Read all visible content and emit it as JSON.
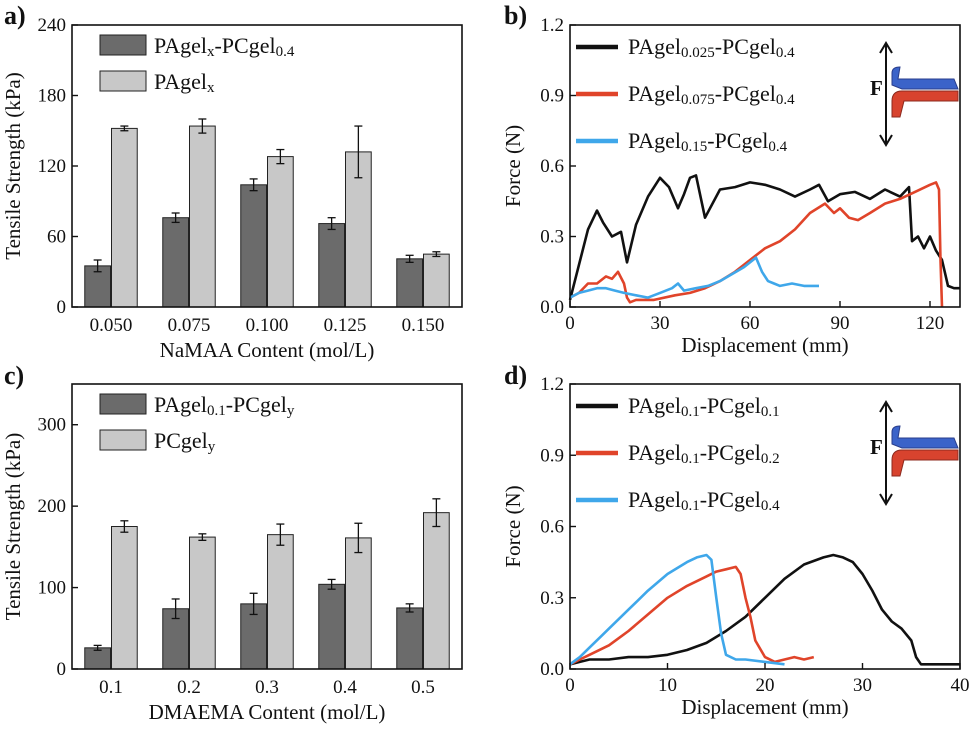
{
  "colors": {
    "dark_bar": "#6b6b6b",
    "light_bar": "#c8c8c8",
    "black_line": "#111111",
    "red_line": "#e0442a",
    "blue_line": "#3fa7ea",
    "inset_blue": "#3b63c9",
    "inset_red": "#d8432e"
  },
  "chart_data": [
    {
      "id": "a",
      "panel_label": "a)",
      "type": "bar",
      "xlabel": "NaMAA Content (mol/L)",
      "ylabel": "Tensile Strength (kPa)",
      "ylim": [
        0,
        240
      ],
      "yticks": [
        "0",
        "60",
        "120",
        "180",
        "240"
      ],
      "categories": [
        "0.050",
        "0.075",
        "0.100",
        "0.125",
        "0.150"
      ],
      "series": [
        {
          "name": "PAgelx-PCgel0.4",
          "legend_main": "PAgel",
          "legend_sub1": "x",
          "legend_mid": "-PCgel",
          "legend_sub2": "0.4",
          "color": "dark",
          "values": [
            35,
            76,
            104,
            71,
            41
          ],
          "errors": [
            5,
            4,
            5,
            5,
            3
          ]
        },
        {
          "name": "PAgelx",
          "legend_main": "PAgel",
          "legend_sub1": "x",
          "legend_mid": "",
          "legend_sub2": "",
          "color": "light",
          "values": [
            152,
            154,
            128,
            132,
            45
          ],
          "errors": [
            2,
            6,
            6,
            22,
            2
          ]
        }
      ]
    },
    {
      "id": "b",
      "panel_label": "b)",
      "type": "line",
      "xlabel": "Displacement (mm)",
      "ylabel": "Force (N)",
      "xlim": [
        0,
        130
      ],
      "ylim": [
        0,
        1.2
      ],
      "xticks": [
        "0",
        "30",
        "60",
        "90",
        "120"
      ],
      "yticks": [
        "0.0",
        "0.3",
        "0.6",
        "0.9",
        "1.2"
      ],
      "inset_label": "F",
      "series": [
        {
          "name": "PAgel0.025-PCgel0.4",
          "legend_main": "PAgel",
          "legend_sub1": "0.025",
          "legend_mid": "-PCgel",
          "legend_sub2": "0.4",
          "color": "black",
          "x": [
            0,
            3,
            6,
            9,
            11,
            14,
            17,
            19,
            22,
            26,
            30,
            33,
            36,
            38,
            40,
            42,
            45,
            50,
            55,
            60,
            65,
            70,
            75,
            80,
            83,
            86,
            90,
            95,
            100,
            105,
            110,
            113,
            114,
            116,
            118,
            120,
            122,
            124,
            126,
            128,
            130
          ],
          "y": [
            0.03,
            0.18,
            0.33,
            0.41,
            0.36,
            0.3,
            0.32,
            0.19,
            0.35,
            0.47,
            0.55,
            0.51,
            0.42,
            0.48,
            0.55,
            0.56,
            0.38,
            0.5,
            0.51,
            0.53,
            0.52,
            0.5,
            0.47,
            0.5,
            0.52,
            0.45,
            0.48,
            0.49,
            0.46,
            0.5,
            0.47,
            0.51,
            0.28,
            0.3,
            0.25,
            0.3,
            0.24,
            0.2,
            0.09,
            0.08,
            0.08
          ]
        },
        {
          "name": "PAgel0.075-PCgel0.4",
          "legend_main": "PAgel",
          "legend_sub1": "0.075",
          "legend_mid": "-PCgel",
          "legend_sub2": "0.4",
          "color": "red",
          "x": [
            0,
            3,
            6,
            9,
            12,
            14,
            16,
            18,
            19,
            20,
            22,
            28,
            35,
            40,
            45,
            50,
            55,
            60,
            65,
            70,
            75,
            80,
            85,
            88,
            90,
            93,
            96,
            100,
            105,
            110,
            115,
            120,
            122,
            123,
            123.5,
            124
          ],
          "y": [
            0.04,
            0.06,
            0.1,
            0.1,
            0.13,
            0.12,
            0.15,
            0.1,
            0.04,
            0.02,
            0.03,
            0.03,
            0.05,
            0.06,
            0.08,
            0.11,
            0.15,
            0.2,
            0.25,
            0.28,
            0.33,
            0.4,
            0.44,
            0.4,
            0.42,
            0.38,
            0.37,
            0.4,
            0.44,
            0.46,
            0.49,
            0.52,
            0.53,
            0.5,
            0.2,
            0.0
          ]
        },
        {
          "name": "PAgel0.15-PCgel0.4",
          "legend_main": "PAgel",
          "legend_sub1": "0.15",
          "legend_mid": "-PCgel",
          "legend_sub2": "0.4",
          "color": "blue",
          "x": [
            0,
            3,
            6,
            9,
            12,
            15,
            18,
            22,
            26,
            30,
            34,
            36,
            38,
            42,
            46,
            50,
            54,
            58,
            61,
            62,
            63,
            64,
            66,
            68,
            70,
            74,
            78,
            83
          ],
          "y": [
            0.04,
            0.06,
            0.07,
            0.08,
            0.08,
            0.07,
            0.06,
            0.05,
            0.04,
            0.06,
            0.08,
            0.1,
            0.07,
            0.08,
            0.09,
            0.11,
            0.14,
            0.17,
            0.2,
            0.21,
            0.18,
            0.15,
            0.11,
            0.1,
            0.09,
            0.1,
            0.09,
            0.09
          ]
        }
      ]
    },
    {
      "id": "c",
      "panel_label": "c)",
      "type": "bar",
      "xlabel": "DMAEMA Content (mol/L)",
      "ylabel": "Tensile Strength (kPa)",
      "ylim": [
        0,
        350
      ],
      "yticks": [
        "0",
        "100",
        "200",
        "300"
      ],
      "ytick_values": [
        0,
        100,
        200,
        300
      ],
      "categories": [
        "0.1",
        "0.2",
        "0.3",
        "0.4",
        "0.5"
      ],
      "series": [
        {
          "name": "PAgel0.1-PCgely",
          "legend_main": "PAgel",
          "legend_sub1": "0.1",
          "legend_mid": "-PCgel",
          "legend_sub2": "y",
          "color": "dark",
          "values": [
            26,
            74,
            80,
            104,
            75
          ],
          "errors": [
            3,
            12,
            13,
            6,
            5
          ]
        },
        {
          "name": "PCgely",
          "legend_main": "PCgel",
          "legend_sub1": "y",
          "legend_mid": "",
          "legend_sub2": "",
          "color": "light",
          "values": [
            175,
            162,
            165,
            161,
            192
          ],
          "errors": [
            7,
            4,
            13,
            18,
            17
          ]
        }
      ]
    },
    {
      "id": "d",
      "panel_label": "d)",
      "type": "line",
      "xlabel": "Displacement (mm)",
      "ylabel": "Force (N)",
      "xlim": [
        0,
        40
      ],
      "ylim": [
        0,
        1.2
      ],
      "xticks": [
        "0",
        "10",
        "20",
        "30",
        "40"
      ],
      "yticks": [
        "0.0",
        "0.3",
        "0.6",
        "0.9",
        "1.2"
      ],
      "inset_label": "F",
      "series": [
        {
          "name": "PAgel0.1-PCgel0.1",
          "legend_main": "PAgel",
          "legend_sub1": "0.1",
          "legend_mid": "-PCgel",
          "legend_sub2": "0.1",
          "color": "black",
          "x": [
            0,
            1,
            2,
            4,
            6,
            8,
            10,
            12,
            14,
            16,
            18,
            20,
            22,
            24,
            26,
            27,
            28,
            29,
            30,
            31,
            32,
            33,
            34,
            35,
            35.5,
            36,
            37,
            38,
            39,
            40
          ],
          "y": [
            0.02,
            0.03,
            0.04,
            0.04,
            0.05,
            0.05,
            0.06,
            0.08,
            0.11,
            0.16,
            0.22,
            0.3,
            0.38,
            0.44,
            0.47,
            0.48,
            0.47,
            0.45,
            0.4,
            0.33,
            0.25,
            0.2,
            0.17,
            0.12,
            0.05,
            0.02,
            0.02,
            0.02,
            0.02,
            0.02
          ]
        },
        {
          "name": "PAgel0.1-PCgel0.2",
          "legend_main": "PAgel",
          "legend_sub1": "0.1",
          "legend_mid": "-PCgel",
          "legend_sub2": "0.2",
          "color": "red",
          "x": [
            0,
            1,
            2,
            4,
            6,
            8,
            10,
            12,
            14,
            15,
            16,
            17,
            17.5,
            18,
            18.5,
            19,
            20,
            21,
            22,
            23,
            24,
            25
          ],
          "y": [
            0.02,
            0.04,
            0.06,
            0.1,
            0.16,
            0.23,
            0.3,
            0.35,
            0.39,
            0.41,
            0.42,
            0.43,
            0.4,
            0.3,
            0.22,
            0.12,
            0.05,
            0.03,
            0.04,
            0.05,
            0.04,
            0.05
          ]
        },
        {
          "name": "PAgel0.1-PCgel0.4",
          "legend_main": "PAgel",
          "legend_sub1": "0.1",
          "legend_mid": "-PCgel",
          "legend_sub2": "0.4",
          "color": "blue",
          "x": [
            0,
            1,
            2,
            4,
            6,
            8,
            10,
            12,
            13,
            14,
            14.5,
            15,
            15.5,
            16,
            17,
            18,
            20,
            22
          ],
          "y": [
            0.02,
            0.05,
            0.09,
            0.17,
            0.25,
            0.33,
            0.4,
            0.45,
            0.47,
            0.48,
            0.46,
            0.3,
            0.15,
            0.06,
            0.04,
            0.04,
            0.03,
            0.02
          ]
        }
      ]
    }
  ]
}
